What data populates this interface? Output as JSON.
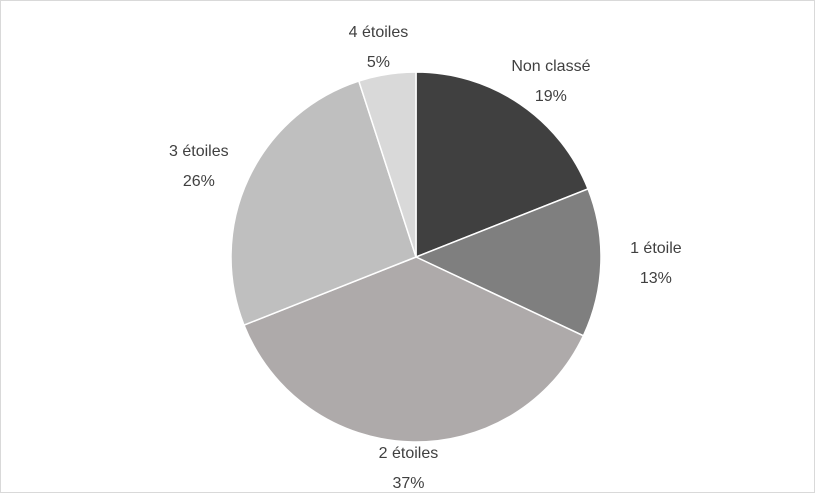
{
  "chart_data": {
    "type": "pie",
    "categories": [
      "Non classé",
      "1 étoile",
      "2 étoiles",
      "3 étoiles",
      "4 étoiles"
    ],
    "values": [
      19,
      13,
      37,
      26,
      5
    ],
    "value_labels": [
      "19%",
      "13%",
      "37%",
      "26%",
      "5%"
    ],
    "colors": [
      "#404040",
      "#7f7f7f",
      "#aeaaaa",
      "#bfbfbf",
      "#d9d9d9"
    ]
  }
}
